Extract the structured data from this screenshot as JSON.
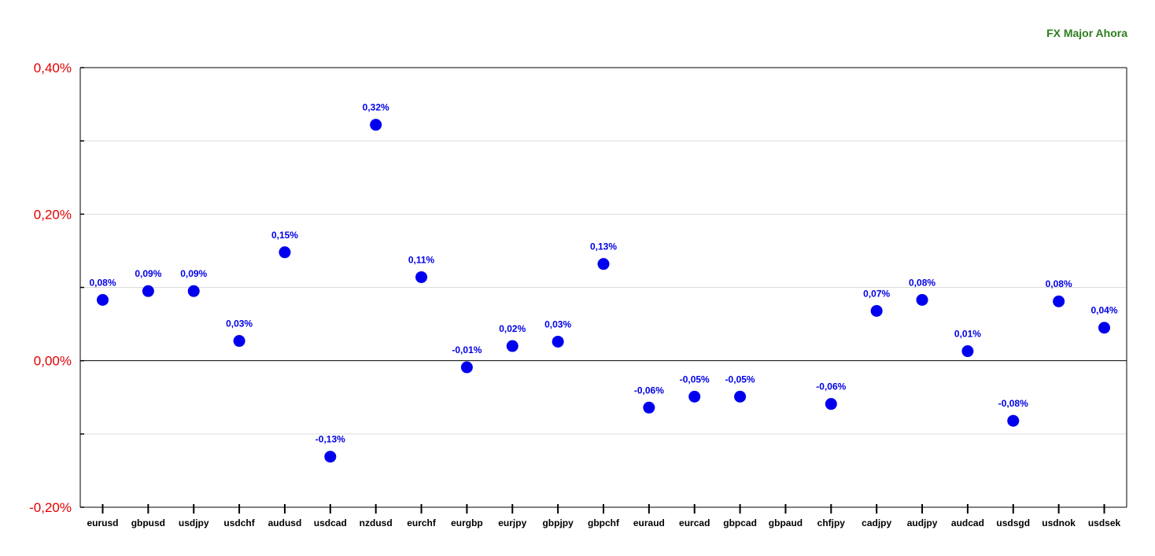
{
  "title": "FX Major Ahora",
  "colors": {
    "point": "#0000ee",
    "label": "#0000e6",
    "ytick": "#e00000",
    "title": "#2e7d1e"
  },
  "chart_data": {
    "type": "scatter",
    "title": "FX Major Ahora",
    "xlabel": "",
    "ylabel": "",
    "ylim": [
      -0.2,
      0.4
    ],
    "yticks": [
      {
        "value": 0.4,
        "label": "0,40%"
      },
      {
        "value": 0.2,
        "label": "0,20%"
      },
      {
        "value": 0.0,
        "label": "0,00%"
      },
      {
        "value": -0.2,
        "label": "-0,20%"
      }
    ],
    "grid": true,
    "categories": [
      "eurusd",
      "gbpusd",
      "usdjpy",
      "usdchf",
      "audusd",
      "usdcad",
      "nzdusd",
      "eurchf",
      "eurgbp",
      "eurjpy",
      "gbpjpy",
      "gbpchf",
      "euraud",
      "eurcad",
      "gbpcad",
      "gbpaud",
      "chfjpy",
      "cadjpy",
      "audjpy",
      "audcad",
      "usdsgd",
      "usdnok",
      "usdsek"
    ],
    "values": [
      0.083,
      0.095,
      0.095,
      0.027,
      0.148,
      -0.131,
      0.322,
      0.114,
      -0.009,
      0.02,
      0.026,
      0.132,
      -0.064,
      -0.049,
      -0.049,
      null,
      -0.059,
      0.068,
      0.083,
      0.013,
      -0.082,
      0.081,
      0.045
    ],
    "labels": [
      "0,08%",
      "0,09%",
      "0,09%",
      "0,03%",
      "0,15%",
      "-0,13%",
      "0,32%",
      "0,11%",
      "-0,01%",
      "0,02%",
      "0,03%",
      "0,13%",
      "-0,06%",
      "-0,05%",
      "-0,05%",
      "",
      "-0,06%",
      "0,07%",
      "0,08%",
      "0,01%",
      "-0,08%",
      "0,08%",
      "0,04%"
    ]
  }
}
